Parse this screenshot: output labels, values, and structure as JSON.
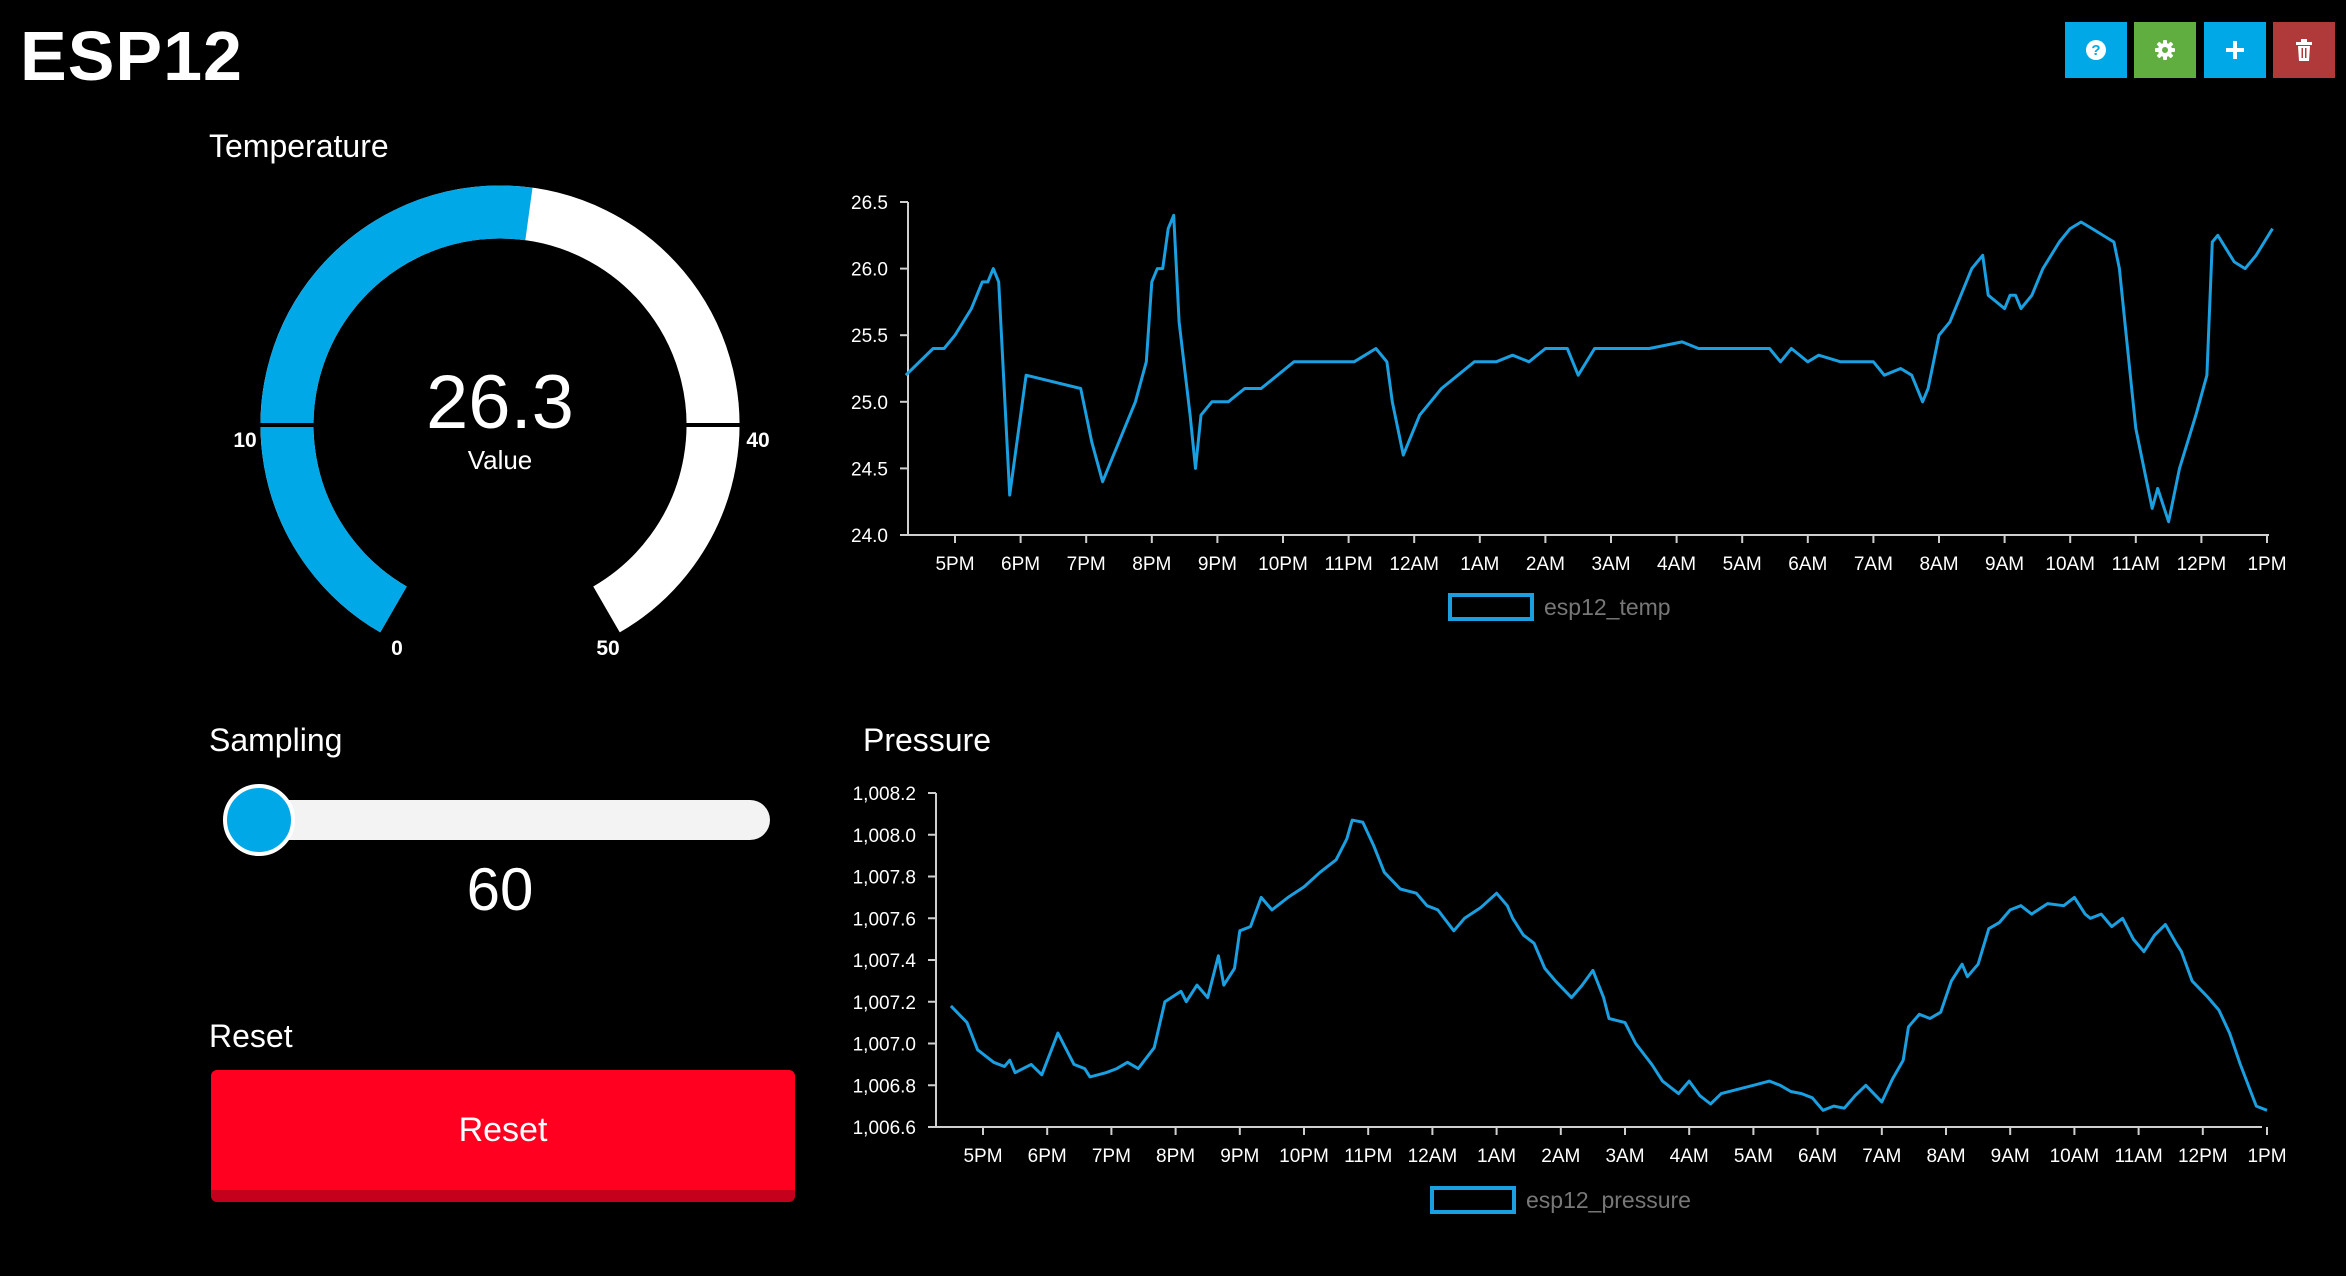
{
  "app": {
    "title": "ESP12"
  },
  "toolbar": {
    "buttons": [
      {
        "name": "help",
        "icon": "question-icon",
        "color": "#00a8e8"
      },
      {
        "name": "settings",
        "icon": "gear-icon",
        "color": "#5fae3f"
      },
      {
        "name": "add",
        "icon": "plus-icon",
        "color": "#00a8e8"
      },
      {
        "name": "delete",
        "icon": "trash-icon",
        "color": "#b03a3a"
      }
    ]
  },
  "temperature": {
    "label": "Temperature",
    "value": "26.3",
    "value_caption": "Value",
    "value_num": 26.3,
    "min": 0,
    "max": 50,
    "tick_labels": [
      "0",
      "10",
      "40",
      "50"
    ],
    "fill_color": "#00a8e8",
    "track_color": "#ffffff"
  },
  "sampling": {
    "label": "Sampling",
    "value": "60",
    "fraction": 0.0
  },
  "reset": {
    "label": "Reset",
    "button_label": "Reset",
    "color": "#ff0021"
  },
  "pressure": {
    "label": "Pressure"
  },
  "chart_data": [
    {
      "type": "line",
      "title": "",
      "series_color": "#1a9fe0",
      "x_labels": [
        "5PM",
        "6PM",
        "7PM",
        "8PM",
        "9PM",
        "10PM",
        "11PM",
        "12AM",
        "1AM",
        "2AM",
        "3AM",
        "4AM",
        "5AM",
        "6AM",
        "7AM",
        "8AM",
        "9AM",
        "10AM",
        "11AM",
        "12PM",
        "1PM"
      ],
      "x_start": "4:15PM",
      "x_end": "1:05PM",
      "ylim": [
        24.0,
        26.5
      ],
      "y_ticks": [
        "24.0",
        "24.5",
        "25.0",
        "25.5",
        "26.0",
        "26.5"
      ],
      "grid": false,
      "legend_position": "bottom",
      "series": [
        {
          "name": "esp12_temp",
          "points": [
            [
              "4:15PM",
              25.2
            ],
            [
              "4:40PM",
              25.4
            ],
            [
              "4:50PM",
              25.4
            ],
            [
              "5:00PM",
              25.5
            ],
            [
              "5:15PM",
              25.7
            ],
            [
              "5:25PM",
              25.9
            ],
            [
              "5:30PM",
              25.9
            ],
            [
              "5:35PM",
              26.0
            ],
            [
              "5:40PM",
              25.9
            ],
            [
              "5:50PM",
              24.3
            ],
            [
              "6:05PM",
              25.2
            ],
            [
              "6:55PM",
              25.1
            ],
            [
              "7:05PM",
              24.7
            ],
            [
              "7:15PM",
              24.4
            ],
            [
              "7:45PM",
              25.0
            ],
            [
              "7:55PM",
              25.3
            ],
            [
              "8:00PM",
              25.9
            ],
            [
              "8:05PM",
              26.0
            ],
            [
              "8:10PM",
              26.0
            ],
            [
              "8:15PM",
              26.3
            ],
            [
              "8:20PM",
              26.4
            ],
            [
              "8:25PM",
              25.6
            ],
            [
              "8:35PM",
              24.9
            ],
            [
              "8:40PM",
              24.5
            ],
            [
              "8:45PM",
              24.9
            ],
            [
              "8:55PM",
              25.0
            ],
            [
              "9:10PM",
              25.0
            ],
            [
              "9:25PM",
              25.1
            ],
            [
              "9:40PM",
              25.1
            ],
            [
              "9:55PM",
              25.2
            ],
            [
              "10:10PM",
              25.3
            ],
            [
              "10:20PM",
              25.3
            ],
            [
              "10:40PM",
              25.3
            ],
            [
              "11:05PM",
              25.3
            ],
            [
              "11:15PM",
              25.35
            ],
            [
              "11:25PM",
              25.4
            ],
            [
              "11:35PM",
              25.3
            ],
            [
              "11:40PM",
              25.0
            ],
            [
              "11:50PM",
              24.6
            ],
            [
              "11:55PM",
              24.7
            ],
            [
              "12:05AM",
              24.9
            ],
            [
              "12:15AM",
              25.0
            ],
            [
              "12:25AM",
              25.1
            ],
            [
              "12:40AM",
              25.2
            ],
            [
              "12:55AM",
              25.3
            ],
            [
              "1:15AM",
              25.3
            ],
            [
              "1:30AM",
              25.35
            ],
            [
              "1:45AM",
              25.3
            ],
            [
              "2:00AM",
              25.4
            ],
            [
              "2:20AM",
              25.4
            ],
            [
              "2:30AM",
              25.2
            ],
            [
              "2:45AM",
              25.4
            ],
            [
              "3:10AM",
              25.4
            ],
            [
              "3:35AM",
              25.4
            ],
            [
              "4:05AM",
              25.45
            ],
            [
              "4:20AM",
              25.4
            ],
            [
              "4:40AM",
              25.4
            ],
            [
              "5:00AM",
              25.4
            ],
            [
              "5:25AM",
              25.4
            ],
            [
              "5:35AM",
              25.3
            ],
            [
              "5:45AM",
              25.4
            ],
            [
              "6:00AM",
              25.3
            ],
            [
              "6:10AM",
              25.35
            ],
            [
              "6:30AM",
              25.3
            ],
            [
              "6:45AM",
              25.3
            ],
            [
              "7:00AM",
              25.3
            ],
            [
              "7:10AM",
              25.2
            ],
            [
              "7:25AM",
              25.25
            ],
            [
              "7:35AM",
              25.2
            ],
            [
              "7:45AM",
              25.0
            ],
            [
              "7:50AM",
              25.1
            ],
            [
              "8:00AM",
              25.5
            ],
            [
              "8:10AM",
              25.6
            ],
            [
              "8:20AM",
              25.8
            ],
            [
              "8:30AM",
              26.0
            ],
            [
              "8:40AM",
              26.1
            ],
            [
              "8:45AM",
              25.8
            ],
            [
              "9:00AM",
              25.7
            ],
            [
              "9:05AM",
              25.8
            ],
            [
              "9:10AM",
              25.8
            ],
            [
              "9:15AM",
              25.7
            ],
            [
              "9:25AM",
              25.8
            ],
            [
              "9:35AM",
              26.0
            ],
            [
              "9:50AM",
              26.2
            ],
            [
              "10:00AM",
              26.3
            ],
            [
              "10:10AM",
              26.35
            ],
            [
              "10:20AM",
              26.3
            ],
            [
              "10:40AM",
              26.2
            ],
            [
              "10:45AM",
              26.0
            ],
            [
              "10:55AM",
              25.2
            ],
            [
              "11:00AM",
              24.8
            ],
            [
              "11:10AM",
              24.4
            ],
            [
              "11:15AM",
              24.2
            ],
            [
              "11:20AM",
              24.35
            ],
            [
              "11:30AM",
              24.1
            ],
            [
              "11:40AM",
              24.5
            ],
            [
              "11:55AM",
              24.9
            ],
            [
              "12:05PM",
              25.2
            ],
            [
              "12:10PM",
              26.2
            ],
            [
              "12:15PM",
              26.25
            ],
            [
              "12:30PM",
              26.05
            ],
            [
              "12:40PM",
              26.0
            ],
            [
              "12:50PM",
              26.1
            ],
            [
              "1:05PM",
              26.3
            ]
          ]
        }
      ]
    },
    {
      "type": "line",
      "title": "Pressure",
      "series_color": "#1a9fe0",
      "x_labels": [
        "5PM",
        "6PM",
        "7PM",
        "8PM",
        "9PM",
        "10PM",
        "11PM",
        "12AM",
        "1AM",
        "2AM",
        "3AM",
        "4AM",
        "5AM",
        "6AM",
        "7AM",
        "8AM",
        "9AM",
        "10AM",
        "11AM",
        "12PM",
        "1PM"
      ],
      "x_start": "4:30PM",
      "x_end": "1:00PM",
      "ylim": [
        1006.6,
        1008.2
      ],
      "y_ticks": [
        "1,006.6",
        "1,006.8",
        "1,007.0",
        "1,007.2",
        "1,007.4",
        "1,007.6",
        "1,007.8",
        "1,008.0",
        "1,008.2"
      ],
      "grid": false,
      "legend_position": "bottom",
      "series": [
        {
          "name": "esp12_pressure",
          "points": [
            [
              "4:30PM",
              1007.18
            ],
            [
              "4:45PM",
              1007.1
            ],
            [
              "4:55PM",
              1006.97
            ],
            [
              "5:10PM",
              1006.91
            ],
            [
              "5:20PM",
              1006.89
            ],
            [
              "5:25PM",
              1006.92
            ],
            [
              "5:30PM",
              1006.86
            ],
            [
              "5:45PM",
              1006.9
            ],
            [
              "5:55PM",
              1006.85
            ],
            [
              "6:10PM",
              1007.05
            ],
            [
              "6:25PM",
              1006.9
            ],
            [
              "6:35PM",
              1006.88
            ],
            [
              "6:40PM",
              1006.84
            ],
            [
              "6:55PM",
              1006.86
            ],
            [
              "7:05PM",
              1006.88
            ],
            [
              "7:15PM",
              1006.91
            ],
            [
              "7:25PM",
              1006.88
            ],
            [
              "7:40PM",
              1006.98
            ],
            [
              "7:50PM",
              1007.2
            ],
            [
              "8:05PM",
              1007.25
            ],
            [
              "8:10PM",
              1007.2
            ],
            [
              "8:20PM",
              1007.28
            ],
            [
              "8:30PM",
              1007.22
            ],
            [
              "8:40PM",
              1007.42
            ],
            [
              "8:45PM",
              1007.28
            ],
            [
              "8:55PM",
              1007.36
            ],
            [
              "9:00PM",
              1007.54
            ],
            [
              "9:10PM",
              1007.56
            ],
            [
              "9:20PM",
              1007.7
            ],
            [
              "9:30PM",
              1007.64
            ],
            [
              "9:45PM",
              1007.7
            ],
            [
              "10:00PM",
              1007.75
            ],
            [
              "10:15PM",
              1007.82
            ],
            [
              "10:30PM",
              1007.88
            ],
            [
              "10:40PM",
              1007.98
            ],
            [
              "10:45PM",
              1008.07
            ],
            [
              "10:55PM",
              1008.06
            ],
            [
              "11:05PM",
              1007.95
            ],
            [
              "11:15PM",
              1007.82
            ],
            [
              "11:30PM",
              1007.74
            ],
            [
              "11:45PM",
              1007.72
            ],
            [
              "11:55PM",
              1007.66
            ],
            [
              "12:05AM",
              1007.64
            ],
            [
              "12:20AM",
              1007.54
            ],
            [
              "12:30AM",
              1007.6
            ],
            [
              "12:45AM",
              1007.65
            ],
            [
              "1:00AM",
              1007.72
            ],
            [
              "1:10AM",
              1007.66
            ],
            [
              "1:15AM",
              1007.6
            ],
            [
              "1:25AM",
              1007.52
            ],
            [
              "1:35AM",
              1007.48
            ],
            [
              "1:45AM",
              1007.36
            ],
            [
              "1:55AM",
              1007.3
            ],
            [
              "2:10AM",
              1007.22
            ],
            [
              "2:20AM",
              1007.28
            ],
            [
              "2:30AM",
              1007.35
            ],
            [
              "2:40AM",
              1007.22
            ],
            [
              "2:45AM",
              1007.12
            ],
            [
              "3:00AM",
              1007.1
            ],
            [
              "3:10AM",
              1007.0
            ],
            [
              "3:25AM",
              1006.9
            ],
            [
              "3:35AM",
              1006.82
            ],
            [
              "3:50AM",
              1006.76
            ],
            [
              "4:00AM",
              1006.82
            ],
            [
              "4:10AM",
              1006.75
            ],
            [
              "4:20AM",
              1006.71
            ],
            [
              "4:30AM",
              1006.76
            ],
            [
              "4:45AM",
              1006.78
            ],
            [
              "5:00AM",
              1006.8
            ],
            [
              "5:15AM",
              1006.82
            ],
            [
              "5:25AM",
              1006.8
            ],
            [
              "5:35AM",
              1006.77
            ],
            [
              "5:45AM",
              1006.76
            ],
            [
              "5:55AM",
              1006.74
            ],
            [
              "6:05AM",
              1006.68
            ],
            [
              "6:15AM",
              1006.7
            ],
            [
              "6:25AM",
              1006.69
            ],
            [
              "6:35AM",
              1006.75
            ],
            [
              "6:45AM",
              1006.8
            ],
            [
              "7:00AM",
              1006.72
            ],
            [
              "7:10AM",
              1006.83
            ],
            [
              "7:20AM",
              1006.92
            ],
            [
              "7:25AM",
              1007.08
            ],
            [
              "7:35AM",
              1007.14
            ],
            [
              "7:45AM",
              1007.12
            ],
            [
              "7:55AM",
              1007.15
            ],
            [
              "8:05AM",
              1007.3
            ],
            [
              "8:15AM",
              1007.38
            ],
            [
              "8:20AM",
              1007.32
            ],
            [
              "8:30AM",
              1007.38
            ],
            [
              "8:40AM",
              1007.55
            ],
            [
              "8:50AM",
              1007.58
            ],
            [
              "9:00AM",
              1007.64
            ],
            [
              "9:10AM",
              1007.66
            ],
            [
              "9:20AM",
              1007.62
            ],
            [
              "9:35AM",
              1007.67
            ],
            [
              "9:50AM",
              1007.66
            ],
            [
              "10:00AM",
              1007.7
            ],
            [
              "10:10AM",
              1007.62
            ],
            [
              "10:15AM",
              1007.6
            ],
            [
              "10:25AM",
              1007.62
            ],
            [
              "10:35AM",
              1007.56
            ],
            [
              "10:45AM",
              1007.6
            ],
            [
              "10:55AM",
              1007.5
            ],
            [
              "11:05AM",
              1007.44
            ],
            [
              "11:15AM",
              1007.52
            ],
            [
              "11:25AM",
              1007.57
            ],
            [
              "11:35AM",
              1007.48
            ],
            [
              "11:40AM",
              1007.44
            ],
            [
              "11:50AM",
              1007.3
            ],
            [
              "12:05PM",
              1007.22
            ],
            [
              "12:15PM",
              1007.16
            ],
            [
              "12:25PM",
              1007.05
            ],
            [
              "12:35PM",
              1006.9
            ],
            [
              "12:50PM",
              1006.7
            ],
            [
              "1:00PM",
              1006.68
            ]
          ]
        }
      ]
    }
  ]
}
